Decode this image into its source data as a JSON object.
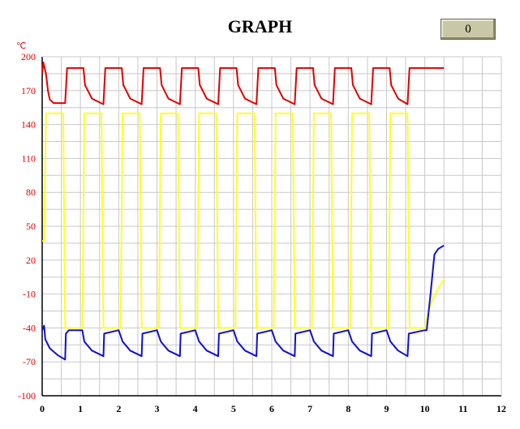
{
  "window": {
    "title": "GRAPH",
    "counter_value": "0"
  },
  "chart_data": {
    "type": "line",
    "title": "GRAPH",
    "ylabel": "℃",
    "xlabel": "",
    "xlim": [
      0,
      12
    ],
    "ylim": [
      -100,
      200
    ],
    "x_ticks": [
      "0",
      "1",
      "2",
      "3",
      "4",
      "5",
      "6",
      "7",
      "8",
      "9",
      "10",
      "11",
      "12"
    ],
    "y_ticks": [
      "200",
      "170",
      "140",
      "110",
      "80",
      "50",
      "20",
      "-10",
      "-40",
      "-70",
      "-100"
    ],
    "grid": true,
    "colors": {
      "red": "#e00000",
      "yellow": "#ffff20",
      "blue": "#1010d0",
      "tick_text": "#e00000",
      "x_text": "#000000",
      "grid": "#c8c8c8"
    },
    "series": [
      {
        "color": "red",
        "values": [
          [
            0,
            185
          ],
          [
            0.03,
            195
          ],
          [
            0.1,
            185
          ],
          [
            0.15,
            170
          ],
          [
            0.2,
            162
          ],
          [
            0.3,
            159
          ],
          [
            0.6,
            159
          ],
          [
            0.65,
            190
          ],
          [
            1.08,
            190
          ],
          [
            1.12,
            175
          ],
          [
            1.3,
            163
          ],
          [
            1.6,
            158
          ],
          [
            1.65,
            190
          ],
          [
            2.08,
            190
          ],
          [
            2.12,
            175
          ],
          [
            2.3,
            163
          ],
          [
            2.6,
            158
          ],
          [
            2.65,
            190
          ],
          [
            3.08,
            190
          ],
          [
            3.12,
            175
          ],
          [
            3.3,
            163
          ],
          [
            3.6,
            158
          ],
          [
            3.65,
            190
          ],
          [
            4.08,
            190
          ],
          [
            4.12,
            175
          ],
          [
            4.3,
            163
          ],
          [
            4.6,
            158
          ],
          [
            4.65,
            190
          ],
          [
            5.08,
            190
          ],
          [
            5.12,
            175
          ],
          [
            5.3,
            163
          ],
          [
            5.6,
            158
          ],
          [
            5.65,
            190
          ],
          [
            6.08,
            190
          ],
          [
            6.12,
            175
          ],
          [
            6.3,
            163
          ],
          [
            6.6,
            158
          ],
          [
            6.65,
            190
          ],
          [
            7.08,
            190
          ],
          [
            7.12,
            175
          ],
          [
            7.3,
            163
          ],
          [
            7.6,
            158
          ],
          [
            7.65,
            190
          ],
          [
            8.08,
            190
          ],
          [
            8.12,
            175
          ],
          [
            8.3,
            163
          ],
          [
            8.6,
            158
          ],
          [
            8.65,
            190
          ],
          [
            9.08,
            190
          ],
          [
            9.12,
            175
          ],
          [
            9.3,
            163
          ],
          [
            9.55,
            158
          ],
          [
            9.6,
            190
          ],
          [
            10.5,
            190
          ]
        ]
      },
      {
        "color": "yellow",
        "values": [
          [
            0,
            37
          ],
          [
            0.05,
            37
          ],
          [
            0.1,
            150
          ],
          [
            0.55,
            150
          ],
          [
            0.6,
            -40
          ],
          [
            1.05,
            -40
          ],
          [
            1.1,
            150
          ],
          [
            1.55,
            150
          ],
          [
            1.6,
            -40
          ],
          [
            2.05,
            -40
          ],
          [
            2.1,
            150
          ],
          [
            2.55,
            150
          ],
          [
            2.6,
            -40
          ],
          [
            3.05,
            -40
          ],
          [
            3.1,
            150
          ],
          [
            3.55,
            150
          ],
          [
            3.6,
            -40
          ],
          [
            4.05,
            -40
          ],
          [
            4.1,
            150
          ],
          [
            4.55,
            150
          ],
          [
            4.6,
            -40
          ],
          [
            5.05,
            -40
          ],
          [
            5.1,
            150
          ],
          [
            5.55,
            150
          ],
          [
            5.6,
            -40
          ],
          [
            6.05,
            -40
          ],
          [
            6.1,
            150
          ],
          [
            6.55,
            150
          ],
          [
            6.6,
            -40
          ],
          [
            7.05,
            -40
          ],
          [
            7.1,
            150
          ],
          [
            7.55,
            150
          ],
          [
            7.6,
            -40
          ],
          [
            8.05,
            -40
          ],
          [
            8.1,
            150
          ],
          [
            8.55,
            150
          ],
          [
            8.6,
            -40
          ],
          [
            9.05,
            -40
          ],
          [
            9.1,
            150
          ],
          [
            9.55,
            150
          ],
          [
            9.6,
            -40
          ],
          [
            10.0,
            -40
          ],
          [
            10.1,
            -25
          ],
          [
            10.2,
            -15
          ],
          [
            10.35,
            -5
          ],
          [
            10.5,
            3
          ]
        ]
      },
      {
        "color": "blue",
        "values": [
          [
            0,
            -42
          ],
          [
            0.05,
            -38
          ],
          [
            0.08,
            -50
          ],
          [
            0.2,
            -58
          ],
          [
            0.4,
            -64
          ],
          [
            0.6,
            -68
          ],
          [
            0.62,
            -45
          ],
          [
            0.7,
            -42
          ],
          [
            1.0,
            -42
          ],
          [
            1.05,
            -42
          ],
          [
            1.1,
            -52
          ],
          [
            1.3,
            -60
          ],
          [
            1.6,
            -65
          ],
          [
            1.62,
            -45
          ],
          [
            2.0,
            -42
          ],
          [
            2.1,
            -52
          ],
          [
            2.3,
            -60
          ],
          [
            2.6,
            -65
          ],
          [
            2.62,
            -45
          ],
          [
            3.0,
            -42
          ],
          [
            3.1,
            -52
          ],
          [
            3.3,
            -60
          ],
          [
            3.6,
            -65
          ],
          [
            3.62,
            -45
          ],
          [
            4.0,
            -42
          ],
          [
            4.1,
            -52
          ],
          [
            4.3,
            -60
          ],
          [
            4.6,
            -65
          ],
          [
            4.62,
            -45
          ],
          [
            5.0,
            -42
          ],
          [
            5.1,
            -52
          ],
          [
            5.3,
            -60
          ],
          [
            5.6,
            -65
          ],
          [
            5.62,
            -45
          ],
          [
            6.0,
            -42
          ],
          [
            6.1,
            -52
          ],
          [
            6.3,
            -60
          ],
          [
            6.6,
            -65
          ],
          [
            6.62,
            -45
          ],
          [
            7.0,
            -42
          ],
          [
            7.1,
            -52
          ],
          [
            7.3,
            -60
          ],
          [
            7.6,
            -65
          ],
          [
            7.62,
            -45
          ],
          [
            8.0,
            -42
          ],
          [
            8.1,
            -52
          ],
          [
            8.3,
            -60
          ],
          [
            8.6,
            -65
          ],
          [
            8.62,
            -45
          ],
          [
            9.0,
            -42
          ],
          [
            9.1,
            -52
          ],
          [
            9.3,
            -60
          ],
          [
            9.55,
            -65
          ],
          [
            9.58,
            -45
          ],
          [
            10.0,
            -42
          ],
          [
            10.05,
            -42
          ],
          [
            10.15,
            -10
          ],
          [
            10.25,
            25
          ],
          [
            10.35,
            30
          ],
          [
            10.5,
            33
          ]
        ]
      }
    ]
  }
}
